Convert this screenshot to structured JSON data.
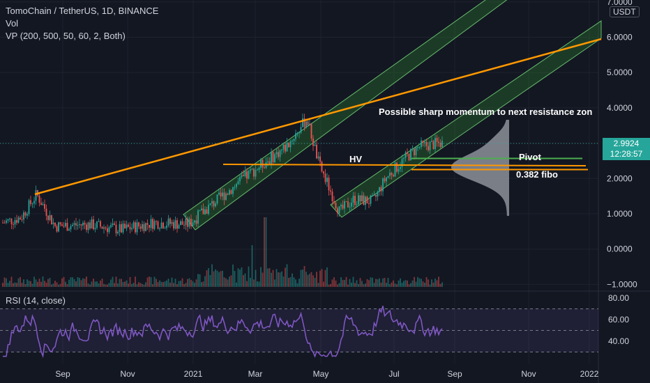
{
  "header": {
    "symbol_line": "TomoChain / TetherUS, 1D, BINANCE",
    "vol_label": "Vol",
    "vp_label": "VP (200, 500, 50, 60, 2, Both)",
    "currency_badge": "USDT"
  },
  "price_axis": {
    "ticks": [
      "7.0000",
      "6.0000",
      "5.0000",
      "4.0000",
      "3.0000",
      "2.0000",
      "1.0000",
      "0.0000",
      "−1.0000"
    ],
    "current_price": "2.9924",
    "countdown": "12:28:57",
    "current_price_color": "#26a69a"
  },
  "time_axis": {
    "labels": [
      "Sep",
      "Nov",
      "2021",
      "Mar",
      "May",
      "Jul",
      "Sep",
      "Nov",
      "2022"
    ]
  },
  "rsi_panel": {
    "label": "RSI (14, close)",
    "ticks": [
      "80.00",
      "60.00",
      "40.00"
    ],
    "line_color": "#7e57c2"
  },
  "annotations": {
    "momentum": "Possible sharp momentum to next resistance zon",
    "hv": "HV",
    "pivot": "Pivot",
    "fibo": "0.382 fibo"
  },
  "colors": {
    "background": "#131722",
    "up_candle": "#26a69a",
    "down_candle": "#ef5350",
    "trendline": "#ff9800",
    "channel_fill": "#2e7d32",
    "pivot_line": "#4caf50",
    "volume_profile": "#9598a1"
  },
  "chart_data": {
    "type": "line",
    "title": "TomoChain / TetherUS, 1D, BINANCE",
    "xlabel": "",
    "ylabel": "",
    "x": [
      "2020-07-15",
      "2020-08-01",
      "2020-08-15",
      "2020-09-01",
      "2020-10-01",
      "2020-11-01",
      "2020-12-01",
      "2021-01-01",
      "2021-02-01",
      "2021-03-01",
      "2021-04-01",
      "2021-04-20",
      "2021-05-01",
      "2021-05-20",
      "2021-06-01",
      "2021-06-20",
      "2021-07-01",
      "2021-07-20",
      "2021-08-01",
      "2021-08-20"
    ],
    "series": [
      {
        "values": [
          0.75,
          0.9,
          1.55,
          0.65,
          0.7,
          0.55,
          0.75,
          0.7,
          1.5,
          2.2,
          2.9,
          3.7,
          2.4,
          1.05,
          1.4,
          1.35,
          2.0,
          2.6,
          2.9,
          3.0
        ]
      }
    ],
    "ylim": [
      -1,
      7
    ],
    "grid": true,
    "levels": {
      "hv": 2.4,
      "pivot": 2.45,
      "fibo_0382": 2.35
    }
  }
}
